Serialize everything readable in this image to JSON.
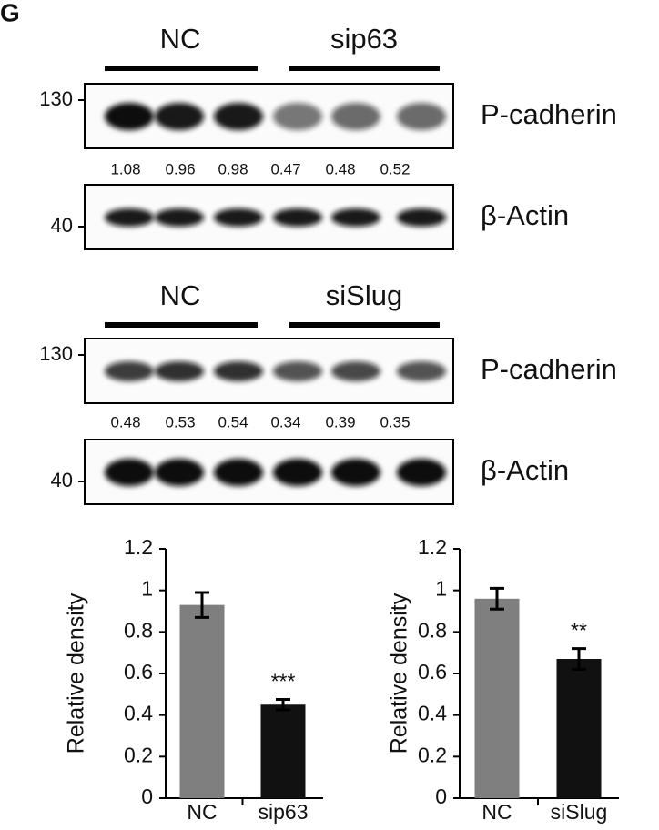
{
  "panel_label": "G",
  "blots": [
    {
      "groups": [
        "NC",
        "sip63"
      ],
      "markers": [
        130,
        40
      ],
      "proteins": [
        "P-cadherin",
        "β-Actin"
      ],
      "quantification": [
        1.08,
        0.96,
        0.98,
        0.47,
        0.48,
        0.52
      ]
    },
    {
      "groups": [
        "NC",
        "siSlug"
      ],
      "markers": [
        130,
        40
      ],
      "proteins": [
        "P-cadherin",
        "β-Actin"
      ],
      "quantification": [
        0.48,
        0.53,
        0.54,
        0.34,
        0.39,
        0.35
      ]
    }
  ],
  "chart_data": [
    {
      "type": "bar",
      "y_label": "Relative density",
      "categories": [
        "NC",
        "sip63"
      ],
      "values": [
        0.93,
        0.45
      ],
      "errors": [
        0.06,
        0.025
      ],
      "colors": [
        "#7f7f7f",
        "#111111"
      ],
      "significance": [
        null,
        "***"
      ],
      "ylim": [
        0,
        1.2
      ],
      "yticks": [
        0,
        0.2,
        0.4,
        0.6,
        0.8,
        1,
        1.2
      ]
    },
    {
      "type": "bar",
      "y_label": "Relative density",
      "categories": [
        "NC",
        "siSlug"
      ],
      "values": [
        0.96,
        0.67
      ],
      "errors": [
        0.05,
        0.05
      ],
      "colors": [
        "#7f7f7f",
        "#111111"
      ],
      "significance": [
        null,
        "**"
      ],
      "ylim": [
        0,
        1.2
      ],
      "yticks": [
        0,
        0.2,
        0.4,
        0.6,
        0.8,
        1,
        1.2
      ]
    }
  ]
}
